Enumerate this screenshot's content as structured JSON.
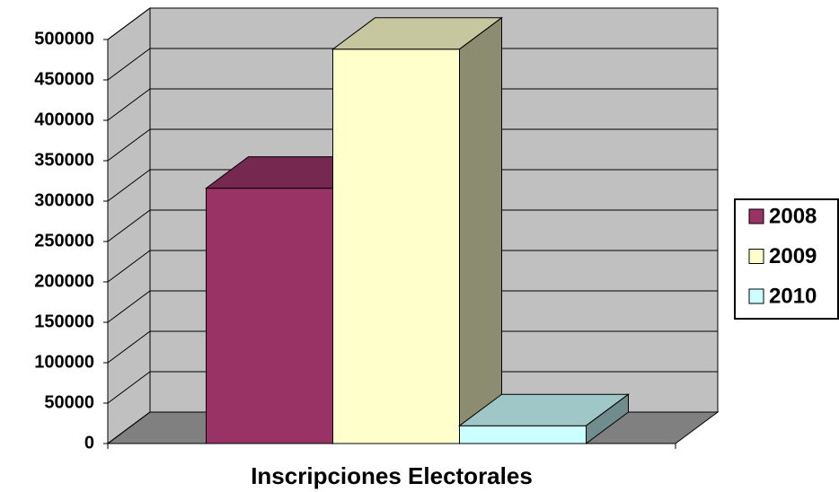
{
  "chart_data": {
    "type": "bar3d",
    "xlabel": "Inscripciones Electorales",
    "categories": [
      null
    ],
    "series": [
      {
        "name": "2008",
        "color": "#993366",
        "values": [
          316000
        ]
      },
      {
        "name": "2009",
        "color": "#ffffcc",
        "values": [
          488000
        ]
      },
      {
        "name": "2010",
        "color": "#ccffff",
        "values": [
          22000
        ]
      }
    ],
    "ylim": [
      0,
      500000
    ],
    "yticks": [
      0,
      50000,
      100000,
      150000,
      200000,
      250000,
      300000,
      350000,
      400000,
      450000,
      500000
    ],
    "grid": true,
    "legend": "right"
  }
}
